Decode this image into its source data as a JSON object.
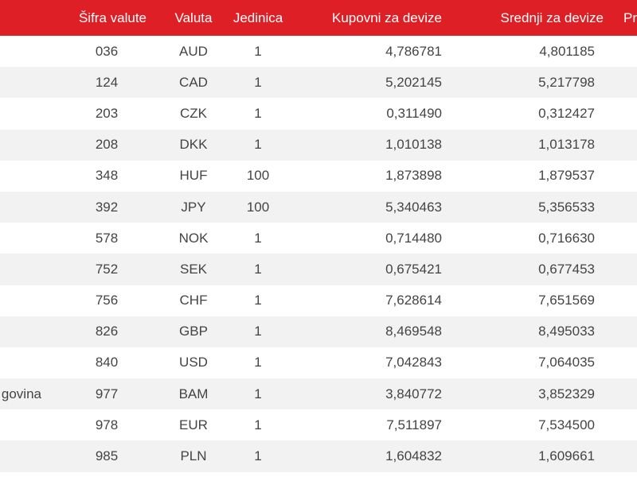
{
  "table": {
    "headers": {
      "country": "",
      "code": "Šifra valute",
      "currency": "Valuta",
      "unit": "Jedinica",
      "buying": "Kupovni za devize",
      "middle": "Srednji za devize",
      "selling": "Prod"
    },
    "rows": [
      {
        "country": "",
        "code": "036",
        "currency": "AUD",
        "unit": "1",
        "buying": "4,786781",
        "middle": "4,801185",
        "selling": ""
      },
      {
        "country": "",
        "code": "124",
        "currency": "CAD",
        "unit": "1",
        "buying": "5,202145",
        "middle": "5,217798",
        "selling": ""
      },
      {
        "country": "",
        "code": "203",
        "currency": "CZK",
        "unit": "1",
        "buying": "0,311490",
        "middle": "0,312427",
        "selling": ""
      },
      {
        "country": "",
        "code": "208",
        "currency": "DKK",
        "unit": "1",
        "buying": "1,010138",
        "middle": "1,013178",
        "selling": ""
      },
      {
        "country": "",
        "code": "348",
        "currency": "HUF",
        "unit": "100",
        "buying": "1,873898",
        "middle": "1,879537",
        "selling": ""
      },
      {
        "country": "",
        "code": "392",
        "currency": "JPY",
        "unit": "100",
        "buying": "5,340463",
        "middle": "5,356533",
        "selling": ""
      },
      {
        "country": "",
        "code": "578",
        "currency": "NOK",
        "unit": "1",
        "buying": "0,714480",
        "middle": "0,716630",
        "selling": ""
      },
      {
        "country": "",
        "code": "752",
        "currency": "SEK",
        "unit": "1",
        "buying": "0,675421",
        "middle": "0,677453",
        "selling": ""
      },
      {
        "country": "",
        "code": "756",
        "currency": "CHF",
        "unit": "1",
        "buying": "7,628614",
        "middle": "7,651569",
        "selling": ""
      },
      {
        "country": "",
        "code": "826",
        "currency": "GBP",
        "unit": "1",
        "buying": "8,469548",
        "middle": "8,495033",
        "selling": ""
      },
      {
        "country": "",
        "code": "840",
        "currency": "USD",
        "unit": "1",
        "buying": "7,042843",
        "middle": "7,064035",
        "selling": ""
      },
      {
        "country": "govina",
        "code": "977",
        "currency": "BAM",
        "unit": "1",
        "buying": "3,840772",
        "middle": "3,852329",
        "selling": ""
      },
      {
        "country": "",
        "code": "978",
        "currency": "EUR",
        "unit": "1",
        "buying": "7,511897",
        "middle": "7,534500",
        "selling": ""
      },
      {
        "country": "",
        "code": "985",
        "currency": "PLN",
        "unit": "1",
        "buying": "1,604832",
        "middle": "1,609661",
        "selling": ""
      }
    ]
  },
  "colors": {
    "header_background": "#de1f26",
    "header_text": "#ffffff",
    "row_stripe": "#f2f2f2",
    "row_text": "#444444"
  }
}
